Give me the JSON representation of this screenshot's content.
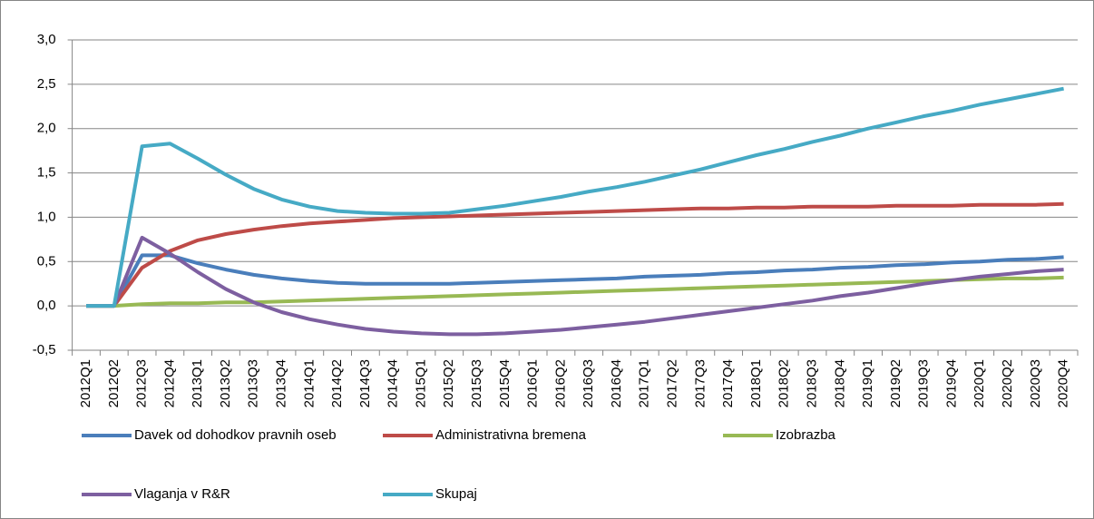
{
  "chart_data": {
    "type": "line",
    "categories": [
      "2012Q1",
      "2012Q2",
      "2012Q3",
      "2012Q4",
      "2013Q1",
      "2013Q2",
      "2013Q3",
      "2013Q4",
      "2014Q1",
      "2014Q2",
      "2014Q3",
      "2014Q4",
      "2015Q1",
      "2015Q2",
      "2015Q3",
      "2015Q4",
      "2016Q1",
      "2016Q2",
      "2016Q3",
      "2016Q4",
      "2017Q1",
      "2017Q2",
      "2017Q3",
      "2017Q4",
      "2018Q1",
      "2018Q2",
      "2018Q3",
      "2018Q4",
      "2019Q1",
      "2019Q2",
      "2019Q3",
      "2019Q4",
      "2020Q1",
      "2020Q2",
      "2020Q3",
      "2020Q4"
    ],
    "series": [
      {
        "name": "Davek od dohodkov pravnih oseb",
        "color": "#4a7ebb",
        "values": [
          0,
          0,
          0.57,
          0.57,
          0.48,
          0.41,
          0.35,
          0.31,
          0.28,
          0.26,
          0.25,
          0.25,
          0.25,
          0.25,
          0.26,
          0.27,
          0.28,
          0.29,
          0.3,
          0.31,
          0.33,
          0.34,
          0.35,
          0.37,
          0.38,
          0.4,
          0.41,
          0.43,
          0.44,
          0.46,
          0.47,
          0.49,
          0.5,
          0.52,
          0.53,
          0.55
        ]
      },
      {
        "name": "Administrativna bremena",
        "color": "#be4b48",
        "values": [
          0,
          0,
          0.43,
          0.62,
          0.74,
          0.81,
          0.86,
          0.9,
          0.93,
          0.95,
          0.97,
          0.99,
          1.0,
          1.01,
          1.02,
          1.03,
          1.04,
          1.05,
          1.06,
          1.07,
          1.08,
          1.09,
          1.1,
          1.1,
          1.11,
          1.11,
          1.12,
          1.12,
          1.12,
          1.13,
          1.13,
          1.13,
          1.14,
          1.14,
          1.14,
          1.15
        ]
      },
      {
        "name": "Izobrazba",
        "color": "#98b954",
        "values": [
          0,
          0,
          0.02,
          0.03,
          0.03,
          0.04,
          0.04,
          0.05,
          0.06,
          0.07,
          0.08,
          0.09,
          0.1,
          0.11,
          0.12,
          0.13,
          0.14,
          0.15,
          0.16,
          0.17,
          0.18,
          0.19,
          0.2,
          0.21,
          0.22,
          0.23,
          0.24,
          0.25,
          0.26,
          0.27,
          0.28,
          0.29,
          0.3,
          0.31,
          0.31,
          0.32
        ]
      },
      {
        "name": "Vlaganja v R&R",
        "color": "#7d5fa0",
        "values": [
          0,
          0,
          0.77,
          0.59,
          0.38,
          0.19,
          0.04,
          -0.07,
          -0.15,
          -0.21,
          -0.26,
          -0.29,
          -0.31,
          -0.32,
          -0.32,
          -0.31,
          -0.29,
          -0.27,
          -0.24,
          -0.21,
          -0.18,
          -0.14,
          -0.1,
          -0.06,
          -0.02,
          0.02,
          0.06,
          0.11,
          0.15,
          0.2,
          0.25,
          0.29,
          0.33,
          0.36,
          0.39,
          0.41
        ]
      },
      {
        "name": "Skupaj",
        "color": "#46aac5",
        "values": [
          0,
          0,
          1.8,
          1.83,
          1.66,
          1.48,
          1.32,
          1.2,
          1.12,
          1.07,
          1.05,
          1.04,
          1.04,
          1.05,
          1.09,
          1.13,
          1.18,
          1.23,
          1.29,
          1.34,
          1.4,
          1.47,
          1.54,
          1.62,
          1.7,
          1.77,
          1.85,
          1.92,
          2.0,
          2.07,
          2.14,
          2.2,
          2.27,
          2.33,
          2.39,
          2.45
        ]
      }
    ],
    "ylim": [
      -0.5,
      3.0
    ],
    "yticks": [
      {
        "value": -0.5,
        "label": "-0,5"
      },
      {
        "value": 0,
        "label": "0,0"
      },
      {
        "value": 0.5,
        "label": "0,5"
      },
      {
        "value": 1.0,
        "label": "1,0"
      },
      {
        "value": 1.5,
        "label": "1,5"
      },
      {
        "value": 2.0,
        "label": "2,0"
      },
      {
        "value": 2.5,
        "label": "2,5"
      },
      {
        "value": 3.0,
        "label": "3,0"
      }
    ],
    "grid": true,
    "legend": "bottom"
  }
}
